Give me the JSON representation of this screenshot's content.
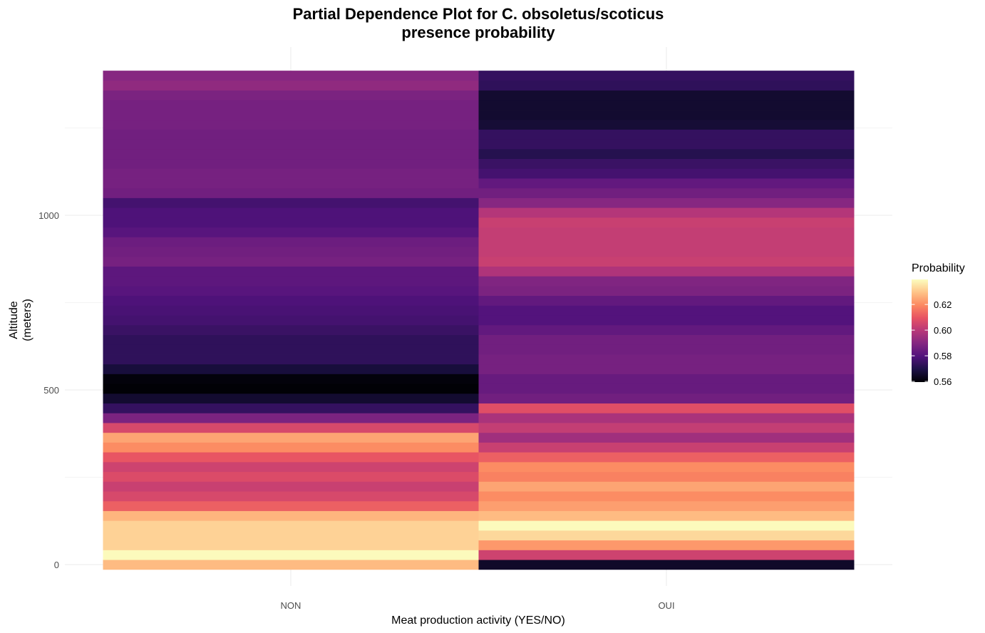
{
  "chart_data": {
    "type": "heatmap",
    "title": [
      "Partial Dependence Plot for C. obsoletus/scoticus",
      "presence probability"
    ],
    "xlabel": "Meat production activity (YES/NO)",
    "ylabel": [
      "Altitude",
      "(meters)"
    ],
    "categories": [
      "NON",
      "OUI"
    ],
    "y_ticks": [
      0,
      500,
      1000
    ],
    "y_minor_ticks": [
      250,
      750,
      1250
    ],
    "ylim": [
      -14,
      1412
    ],
    "bin_height": 28,
    "legend": {
      "title": "Probability",
      "placement": "right",
      "ticks": [
        0.56,
        0.58,
        0.6,
        0.62
      ],
      "tick_labels": [
        "0.56",
        "0.58",
        "0.60",
        "0.62"
      ],
      "range": [
        0.5595,
        0.6395
      ]
    },
    "colorscale": [
      "#000004",
      "#1d1147",
      "#51127c",
      "#832681",
      "#b73779",
      "#e75263",
      "#fc8961",
      "#fec488",
      "#fcfdbf"
    ],
    "grid": true,
    "series": [
      {
        "category": "NON",
        "altitude": [
          0,
          28,
          56,
          84,
          112,
          140,
          168,
          196,
          224,
          252,
          280,
          308,
          336,
          364,
          392,
          420,
          448,
          476,
          504,
          532,
          560,
          588,
          616,
          644,
          672,
          700,
          728,
          756,
          784,
          812,
          840,
          868,
          896,
          924,
          952,
          980,
          1008,
          1036,
          1064,
          1092,
          1120,
          1148,
          1176,
          1204,
          1232,
          1260,
          1288,
          1316,
          1344,
          1372,
          1400
        ],
        "probability": [
          0.628,
          0.639,
          0.632,
          0.632,
          0.632,
          0.627,
          0.612,
          0.606,
          0.603,
          0.607,
          0.604,
          0.61,
          0.62,
          0.624,
          0.606,
          0.588,
          0.574,
          0.566,
          0.5598,
          0.5605,
          0.5678,
          0.573,
          0.573,
          0.573,
          0.575,
          0.577,
          0.578,
          0.579,
          0.581,
          0.582,
          0.582,
          0.587,
          0.586,
          0.585,
          0.581,
          0.579,
          0.579,
          0.577,
          0.586,
          0.587,
          0.587,
          0.586,
          0.586,
          0.586,
          0.586,
          0.587,
          0.587,
          0.587,
          0.588,
          0.592,
          0.59
        ]
      },
      {
        "category": "OUI",
        "altitude": [
          0,
          28,
          56,
          84,
          112,
          140,
          168,
          196,
          224,
          252,
          280,
          308,
          336,
          364,
          392,
          420,
          448,
          476,
          504,
          532,
          560,
          588,
          616,
          644,
          672,
          700,
          728,
          756,
          784,
          812,
          840,
          868,
          896,
          924,
          952,
          980,
          1008,
          1036,
          1064,
          1092,
          1120,
          1148,
          1176,
          1204,
          1232,
          1260,
          1288,
          1316,
          1344,
          1372,
          1400
        ],
        "probability": [
          0.565,
          0.604,
          0.622,
          0.633,
          0.639,
          0.628,
          0.623,
          0.62,
          0.624,
          0.618,
          0.62,
          0.612,
          0.603,
          0.595,
          0.602,
          0.597,
          0.608,
          0.586,
          0.584,
          0.584,
          0.587,
          0.587,
          0.586,
          0.586,
          0.583,
          0.58,
          0.58,
          0.583,
          0.588,
          0.589,
          0.598,
          0.603,
          0.602,
          0.602,
          0.602,
          0.603,
          0.599,
          0.59,
          0.586,
          0.583,
          0.577,
          0.575,
          0.571,
          0.574,
          0.574,
          0.567,
          0.566,
          0.566,
          0.566,
          0.573,
          0.574
        ]
      }
    ]
  }
}
